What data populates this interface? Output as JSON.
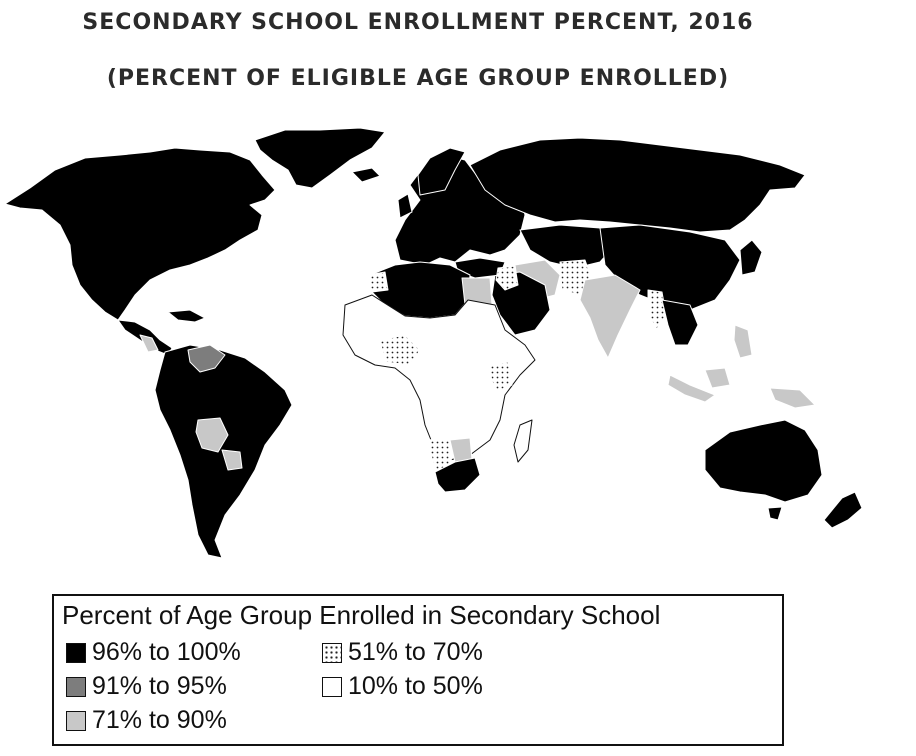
{
  "title": "SECONDARY SCHOOL ENROLLMENT PERCENT, 2016",
  "subtitle": "(PERCENT OF ELIGIBLE AGE GROUP ENROLLED)",
  "legend": {
    "title": "Percent of Age Group Enrolled in Secondary School",
    "items": [
      {
        "label": "96% to 100%",
        "fill": "#000000"
      },
      {
        "label": "91% to 95%",
        "fill": "#7d7d7d"
      },
      {
        "label": "71% to 90%",
        "fill": "#c8c8c8"
      },
      {
        "label": "51% to 70%",
        "fill": "dotted"
      },
      {
        "label": "10% to 50%",
        "fill": "#ffffff"
      }
    ]
  }
}
